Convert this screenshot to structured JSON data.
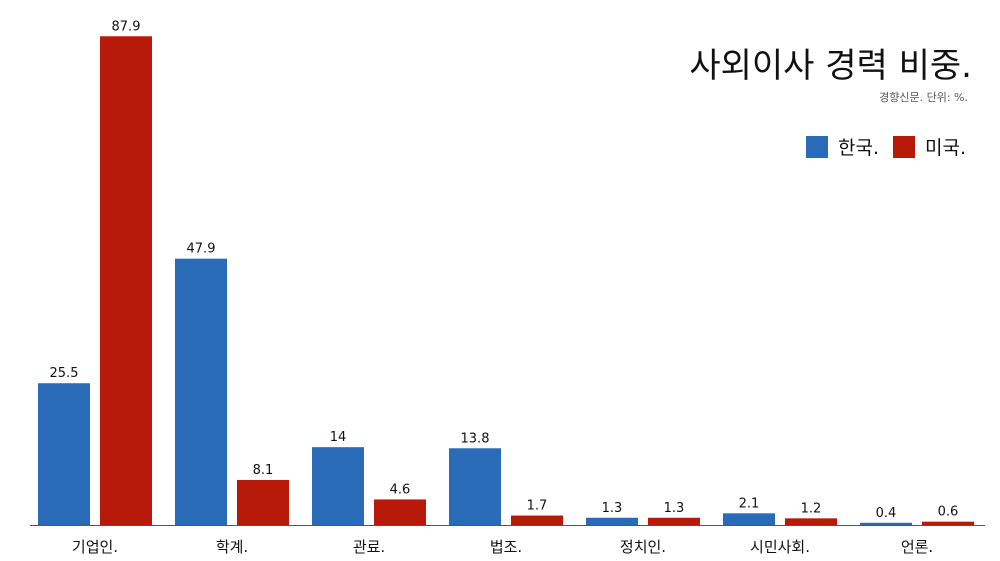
{
  "chart_data": {
    "type": "bar",
    "title": "사외이사 경력 비중.",
    "subtitle": "경향신문. 단위: %.",
    "categories": [
      "기업인.",
      "학계.",
      "관료.",
      "법조.",
      "정치인.",
      "시민사회.",
      "언론."
    ],
    "series": [
      {
        "name": "한국.",
        "color": "#2a6bb8",
        "values": [
          25.5,
          47.9,
          14,
          13.8,
          1.3,
          2.1,
          0.4
        ]
      },
      {
        "name": "미국.",
        "color": "#b81a0a",
        "values": [
          87.9,
          8.1,
          4.6,
          1.7,
          1.3,
          1.2,
          0.6
        ]
      }
    ],
    "value_labels": [
      [
        "25.5",
        "47.9",
        "14",
        "13.8",
        "1.3",
        "2.1",
        "0.4"
      ],
      [
        "87.9",
        "8.1",
        "4.6",
        "1.7",
        "1.3",
        "1.2",
        "0.6"
      ]
    ],
    "ylim": [
      0,
      90
    ],
    "xlabel": "",
    "ylabel": "",
    "grid": false,
    "legend": "top-right"
  }
}
